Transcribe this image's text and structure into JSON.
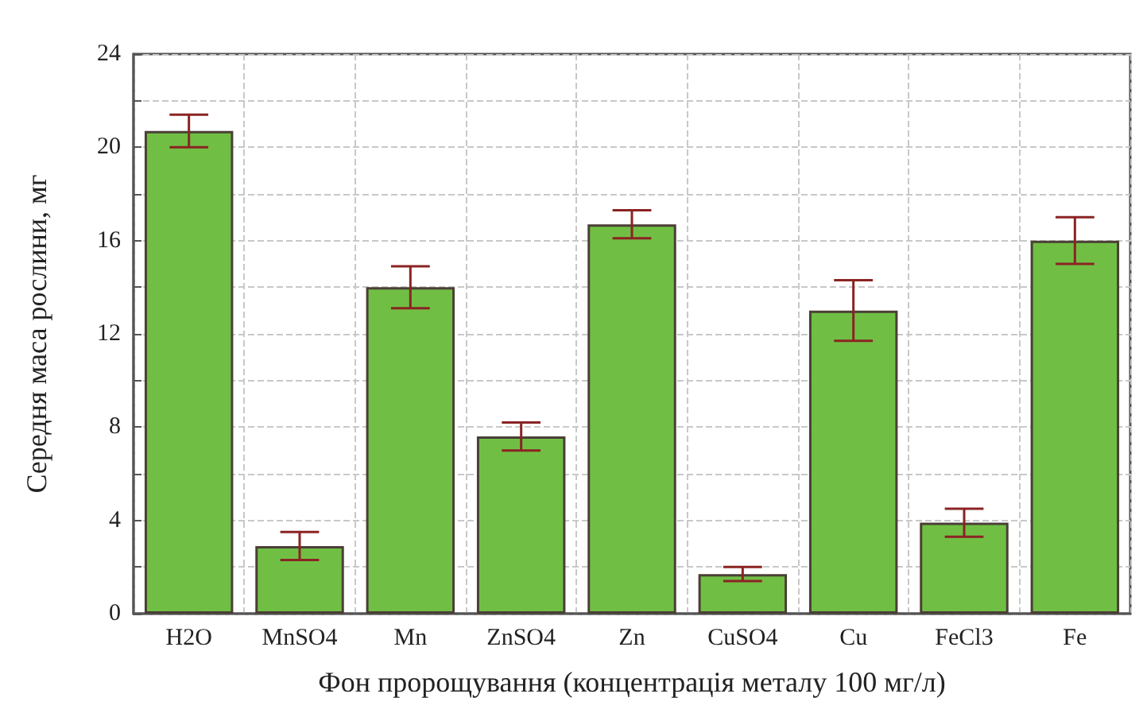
{
  "chart_data": {
    "type": "bar",
    "xlabel": "Фон пророщування (концентрація металу 100 мг/л)",
    "ylabel": "Середня маса рослини, мг",
    "categories": [
      "H2O",
      "MnSO4",
      "Mn",
      "ZnSO4",
      "Zn",
      "CuSO4",
      "Cu",
      "FeCl3",
      "Fe"
    ],
    "values": [
      20.7,
      2.9,
      14.0,
      7.6,
      16.7,
      1.7,
      13.0,
      3.9,
      16.0
    ],
    "errors": [
      0.7,
      0.6,
      0.9,
      0.6,
      0.6,
      0.3,
      1.3,
      0.6,
      1.0
    ],
    "color": "#70bf44",
    "ylim": [
      0,
      24
    ],
    "yticks": [
      0,
      {
        "value": 2,
        "label": null
      },
      4,
      {
        "value": 6,
        "label": null
      },
      8,
      {
        "value": 10,
        "label": null
      },
      12,
      {
        "value": 14,
        "label": null
      },
      16,
      {
        "value": 18,
        "label": null
      },
      20,
      {
        "value": 22,
        "label": null
      },
      24
    ],
    "grid": true
  }
}
